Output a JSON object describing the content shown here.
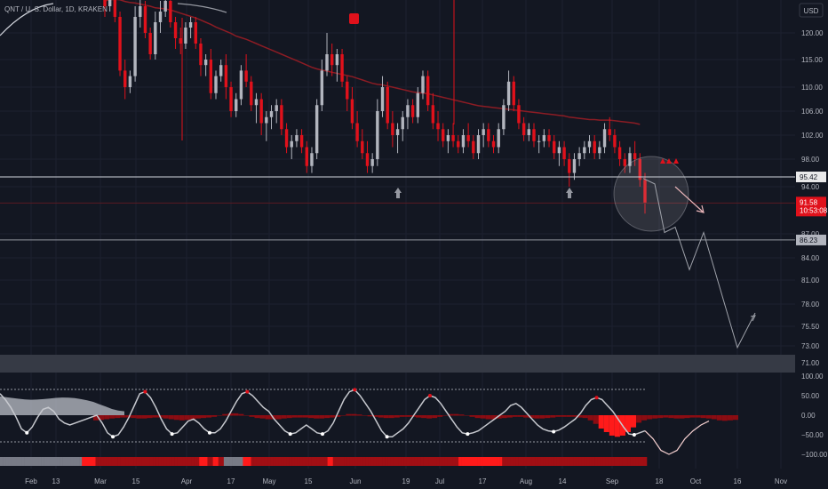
{
  "header": {
    "symbol": "QNT / U. S. Dollar, 1D, KRAKEN",
    "currency_button": "USD"
  },
  "colors": {
    "background": "#131722",
    "bull": "#b2b5be",
    "bear": "#e0111b",
    "ma": "#8c1c24",
    "level_line": "#d1d4dc",
    "forecast": "#a0a3ab",
    "price_tag": "#e0111b",
    "signal_up": "#9598a1",
    "signal_down": "#e0111b"
  },
  "price_axis": {
    "ticks": [
      "120.00",
      "115.00",
      "110.00",
      "106.00",
      "102.00",
      "98.00",
      "94.00",
      "87.00",
      "84.00",
      "81.00",
      "78.00",
      "75.50",
      "73.00",
      "71.00"
    ],
    "tick_values": [
      120,
      115,
      110,
      106,
      102,
      98,
      94,
      87,
      84,
      81,
      78,
      75.5,
      73,
      71
    ]
  },
  "level_tags": {
    "upper": "95.42",
    "current_price": "91.58",
    "countdown": "10:53:08",
    "lower": "86.23"
  },
  "oscillator_axis": {
    "ticks": [
      "100.00",
      "50.00",
      "0.00",
      "−50.00",
      "−100.00"
    ],
    "tick_values": [
      100,
      50,
      0,
      -50,
      -100
    ]
  },
  "time_axis": {
    "labels": [
      "Feb",
      "13",
      "Mar",
      "15",
      "Apr",
      "17",
      "May",
      "15",
      "Jun",
      "19",
      "Jul",
      "17",
      "Aug",
      "14",
      "Sep",
      "18",
      "Oct",
      "16",
      "Nov"
    ]
  },
  "chart_data": {
    "type": "candlestick",
    "series": [
      {
        "name": "",
        "ohlc_daily": [
          [
            127,
            128,
            123,
            125
          ],
          [
            125,
            129,
            124,
            127
          ],
          [
            127,
            128,
            122,
            123
          ],
          [
            123,
            124,
            112,
            113
          ],
          [
            113,
            115,
            108,
            110
          ],
          [
            110,
            113,
            109,
            112
          ],
          [
            112,
            125,
            111,
            123
          ],
          [
            123,
            127,
            121,
            125
          ],
          [
            125,
            126,
            119,
            120
          ],
          [
            120,
            121,
            115,
            116
          ],
          [
            116,
            124,
            115,
            122
          ],
          [
            122,
            126,
            120,
            124
          ],
          [
            124,
            127,
            123,
            126
          ],
          [
            126,
            127,
            121,
            122
          ],
          [
            122,
            123,
            117,
            119
          ],
          [
            119,
            121,
            116,
            118
          ],
          [
            118,
            122,
            117,
            121
          ],
          [
            121,
            123,
            119,
            122
          ],
          [
            122,
            123,
            117,
            118
          ],
          [
            118,
            119,
            112,
            114
          ],
          [
            114,
            116,
            112,
            115
          ],
          [
            115,
            117,
            108,
            109
          ],
          [
            109,
            113,
            108,
            112
          ],
          [
            112,
            115,
            111,
            114
          ],
          [
            114,
            116,
            108,
            110
          ],
          [
            110,
            111,
            105,
            106
          ],
          [
            106,
            109,
            105,
            108
          ],
          [
            108,
            114,
            107,
            113
          ],
          [
            113,
            116,
            110,
            111
          ],
          [
            111,
            112,
            106,
            107
          ],
          [
            107,
            109,
            104,
            108
          ],
          [
            108,
            109,
            102,
            104
          ],
          [
            104,
            106,
            101,
            105
          ],
          [
            105,
            107,
            103,
            106
          ],
          [
            106,
            108,
            104,
            107
          ],
          [
            107,
            108,
            102,
            103
          ],
          [
            103,
            104,
            99,
            100
          ],
          [
            100,
            102,
            98,
            101
          ],
          [
            101,
            103,
            100,
            102
          ],
          [
            102,
            103,
            99,
            100
          ],
          [
            100,
            101,
            96,
            97
          ],
          [
            97,
            100,
            96,
            99
          ],
          [
            99,
            108,
            98,
            107
          ],
          [
            107,
            115,
            106,
            113
          ],
          [
            113,
            120,
            112,
            116
          ],
          [
            116,
            118,
            112,
            114
          ],
          [
            114,
            117,
            111,
            116
          ],
          [
            116,
            117,
            110,
            111
          ],
          [
            111,
            112,
            106,
            108
          ],
          [
            108,
            110,
            103,
            104
          ],
          [
            104,
            106,
            100,
            101
          ],
          [
            101,
            103,
            98,
            99
          ],
          [
            99,
            101,
            96,
            97
          ],
          [
            97,
            99,
            96,
            98
          ],
          [
            98,
            108,
            97,
            106
          ],
          [
            106,
            112,
            105,
            110
          ],
          [
            110,
            111,
            103,
            104
          ],
          [
            104,
            106,
            100,
            102
          ],
          [
            102,
            104,
            99,
            103
          ],
          [
            103,
            106,
            101,
            105
          ],
          [
            105,
            108,
            103,
            107
          ],
          [
            107,
            108,
            104,
            105
          ],
          [
            105,
            110,
            104,
            109
          ],
          [
            109,
            113,
            108,
            112
          ],
          [
            112,
            113,
            106,
            107
          ],
          [
            107,
            109,
            103,
            104
          ],
          [
            104,
            106,
            101,
            103
          ],
          [
            103,
            104,
            100,
            101
          ],
          [
            101,
            103,
            99,
            102
          ],
          [
            102,
            104,
            100,
            101
          ],
          [
            101,
            102,
            99,
            100
          ],
          [
            100,
            103,
            99,
            102
          ],
          [
            102,
            104,
            100,
            101
          ],
          [
            101,
            102,
            98,
            99
          ],
          [
            99,
            103,
            98,
            102
          ],
          [
            102,
            104,
            100,
            103
          ],
          [
            103,
            104,
            100,
            101
          ],
          [
            101,
            102,
            99,
            100
          ],
          [
            100,
            104,
            99,
            103
          ],
          [
            103,
            108,
            102,
            107
          ],
          [
            107,
            113,
            106,
            111
          ],
          [
            111,
            112,
            106,
            107
          ],
          [
            107,
            108,
            103,
            104
          ],
          [
            104,
            105,
            101,
            102
          ],
          [
            102,
            104,
            101,
            103
          ],
          [
            103,
            104,
            100,
            101
          ],
          [
            101,
            102,
            99,
            101
          ],
          [
            101,
            103,
            100,
            102
          ],
          [
            102,
            103,
            100,
            101
          ],
          [
            101,
            102,
            98,
            99
          ],
          [
            99,
            101,
            97,
            100
          ],
          [
            100,
            101,
            97,
            98
          ],
          [
            98,
            99,
            94,
            96
          ],
          [
            96,
            99,
            95,
            98
          ],
          [
            98,
            100,
            97,
            99
          ],
          [
            99,
            101,
            98,
            100
          ],
          [
            100,
            102,
            99,
            101
          ],
          [
            101,
            102,
            98,
            99
          ],
          [
            99,
            101,
            98,
            100
          ],
          [
            100,
            104,
            99,
            103
          ],
          [
            103,
            105,
            101,
            102
          ],
          [
            102,
            103,
            99,
            100
          ],
          [
            100,
            101,
            97,
            98
          ],
          [
            98,
            99,
            96,
            97
          ],
          [
            97,
            100,
            96,
            99
          ],
          [
            99,
            101,
            97,
            98
          ],
          [
            98,
            99,
            94,
            95
          ],
          [
            95,
            96,
            90,
            91.58
          ]
        ],
        "ma_line": [
          126,
          126.2,
          126.3,
          126.2,
          125.9,
          125.7,
          125.6,
          125.4,
          125.2,
          125,
          124.7,
          124.6,
          124.5,
          124.3,
          124,
          123.7,
          123.4,
          123.1,
          122.8,
          122.4,
          122,
          121.6,
          121.1,
          120.7,
          120.3,
          119.9,
          119.4,
          119.1,
          118.8,
          118.4,
          118,
          117.6,
          117.2,
          116.8,
          116.4,
          116,
          115.6,
          115.2,
          114.8,
          114.4,
          114,
          113.6,
          113.3,
          113.1,
          112.9,
          112.7,
          112.5,
          112.3,
          112.1,
          111.9,
          111.6,
          111.3,
          111,
          110.7,
          110.5,
          110.4,
          110.2,
          110,
          109.8,
          109.6,
          109.4,
          109.2,
          109.1,
          109,
          108.9,
          108.7,
          108.5,
          108.3,
          108.1,
          107.9,
          107.7,
          107.5,
          107.3,
          107.1,
          106.9,
          106.8,
          106.7,
          106.6,
          106.5,
          106.4,
          106.3,
          106.2,
          106.1,
          106,
          105.9,
          105.8,
          105.7,
          105.6,
          105.5,
          105.4,
          105.3,
          105.2,
          105,
          104.9,
          104.8,
          104.7,
          104.6,
          104.6,
          104.5,
          104.5,
          104.5,
          104.4,
          104.3,
          104.2,
          104.1,
          104,
          103.8
        ]
      }
    ],
    "levels": [
      95.42,
      91.58,
      86.23
    ],
    "projection": [
      [
        95.2,
        94.4
      ],
      [
        87.2,
        88
      ],
      [
        82.4,
        87.2
      ],
      [
        72.8,
        77
      ]
    ],
    "signals": {
      "down_markers_count": 3,
      "up_markers_count": 2
    },
    "oscillator": {
      "main_line": [
        55,
        40,
        20,
        -5,
        -35,
        -45,
        -30,
        -5,
        15,
        20,
        10,
        -10,
        -20,
        -25,
        -20,
        -15,
        -10,
        -5,
        0,
        -20,
        -45,
        -55,
        -50,
        -30,
        -5,
        25,
        55,
        60,
        45,
        20,
        -10,
        -35,
        -48,
        -45,
        -30,
        -15,
        -10,
        -20,
        -35,
        -45,
        -45,
        -35,
        -15,
        10,
        35,
        55,
        60,
        50,
        35,
        20,
        10,
        -10,
        -25,
        -40,
        -48,
        -45,
        -35,
        -25,
        -35,
        -45,
        -48,
        -40,
        -20,
        10,
        40,
        60,
        65,
        50,
        30,
        10,
        -15,
        -40,
        -55,
        -55,
        -45,
        -35,
        -20,
        0,
        20,
        40,
        50,
        45,
        30,
        10,
        -10,
        -30,
        -45,
        -48,
        -45,
        -40,
        -30,
        -20,
        -10,
        0,
        10,
        25,
        30,
        20,
        5,
        -10,
        -25,
        -35,
        -40,
        -42,
        -38,
        -30,
        -20,
        -10,
        5,
        25,
        40,
        45,
        40,
        25,
        10,
        -10,
        -30,
        -48,
        -50,
        -45,
        -40
      ],
      "projection": [
        -40,
        -60,
        -90,
        -100,
        -90,
        -60,
        -40,
        -25,
        -15
      ],
      "histogram": [
        -20,
        -18,
        -15,
        -12,
        -10,
        -8,
        -8,
        -10,
        -12,
        -12,
        -10,
        -8,
        -8,
        -12,
        -15,
        -18,
        -20,
        -18,
        -15,
        -12,
        -10,
        -8,
        -5,
        0,
        5,
        8,
        8,
        5,
        0,
        -5,
        -10,
        -12,
        -15,
        -15,
        -15,
        -12,
        -10,
        -8,
        -8,
        -8,
        -10,
        -12,
        -12,
        -10,
        -8,
        -5,
        0,
        5,
        5,
        3,
        0,
        -3,
        -5,
        -8,
        -10,
        -10,
        -8,
        -5,
        -5,
        -5,
        -8,
        -10,
        -12,
        -10,
        -5,
        0,
        5,
        5,
        3,
        0,
        -5,
        -10,
        -12,
        -15,
        -15,
        -12,
        -10,
        -8,
        -5,
        -5,
        -8,
        -10,
        -12,
        -12,
        -10,
        -8,
        -5,
        -5,
        -5,
        -5,
        -8,
        -10,
        -20,
        -35,
        -55,
        -70,
        -85,
        -90,
        -85,
        -70,
        -50,
        -30,
        -20,
        -15,
        -12,
        -10,
        -8,
        -10,
        -12,
        -12,
        -10,
        -8,
        -8,
        -10,
        -12,
        -15,
        -20,
        -22,
        -20,
        -18
      ],
      "band_cloud": [
        95,
        90,
        85,
        80,
        76,
        74,
        75,
        78,
        82,
        86,
        88,
        87,
        84,
        78,
        70,
        60,
        45,
        30,
        15,
        5,
        0
      ]
    },
    "state_strip": [
      0,
      0,
      0,
      0,
      0,
      0,
      0,
      0,
      0,
      0,
      0,
      0,
      0,
      0,
      0,
      0,
      0,
      0,
      0,
      0,
      0,
      0,
      0,
      0,
      0,
      0,
      0,
      0,
      0,
      0,
      2,
      2,
      2,
      2,
      2,
      1,
      1,
      1,
      1,
      1,
      1,
      1,
      1,
      1,
      1,
      1,
      1,
      1,
      1,
      1,
      1,
      1,
      1,
      1,
      1,
      1,
      1,
      1,
      1,
      1,
      1,
      1,
      1,
      1,
      1,
      1,
      1,
      1,
      1,
      1,
      1,
      1,
      1,
      2,
      2,
      2,
      1,
      1,
      2,
      2,
      1,
      1,
      0,
      0,
      0,
      0,
      0,
      0,
      0,
      2,
      2,
      2,
      1,
      1,
      1,
      1,
      1,
      1,
      1,
      1,
      1,
      1,
      1,
      1,
      1,
      1,
      1,
      1,
      1,
      1,
      1,
      1,
      1,
      1,
      1,
      1,
      1,
      1,
      1,
      1,
      2,
      2,
      1,
      1,
      1,
      1,
      1,
      1,
      1,
      1,
      1,
      1,
      1,
      1,
      1,
      1,
      1,
      1,
      1,
      1,
      1,
      1,
      1,
      1,
      1,
      1,
      1,
      1,
      1,
      1,
      1,
      1,
      1,
      1,
      1,
      1,
      1,
      1,
      1,
      1,
      1,
      1,
      1,
      1,
      1,
      1,
      1,
      1,
      2,
      2,
      2,
      2,
      2,
      2,
      2,
      2,
      2,
      2,
      2,
      2,
      2,
      2,
      2,
      2,
      1,
      1,
      1,
      1,
      1,
      1,
      1,
      1,
      1,
      1,
      1,
      1,
      1,
      1,
      1,
      1,
      1,
      1,
      1,
      1,
      1,
      1,
      1,
      1,
      1,
      1,
      1,
      1,
      1,
      1,
      1,
      1,
      1,
      1,
      1,
      1,
      1,
      1,
      1,
      1,
      1,
      1,
      1,
      1,
      1,
      1,
      1,
      1,
      1,
      1,
      1,
      1,
      1
    ]
  }
}
